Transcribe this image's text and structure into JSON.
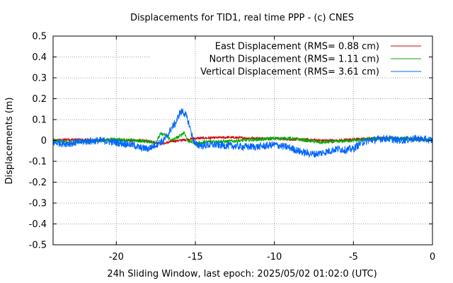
{
  "chart_data": {
    "type": "line",
    "title": "Displacements for TID1, real time PPP - (c) CNES",
    "xlabel": "24h Sliding Window, last epoch: 2025/05/02 01:02:0 (UTC)",
    "ylabel": "Displacements (m)",
    "xlim": [
      -24,
      0
    ],
    "ylim": [
      -0.5,
      0.5
    ],
    "x_ticks": [
      -20,
      -15,
      -10,
      -5,
      0
    ],
    "y_ticks": [
      -0.5,
      -0.4,
      -0.3,
      -0.2,
      -0.1,
      0,
      0.1,
      0.2,
      0.3,
      0.4,
      0.5
    ],
    "y_tick_labels": [
      "-0.5",
      "-0.4",
      "-0.3",
      "-0.2",
      "-0.1",
      "0",
      "0.1",
      "0.2",
      "0.3",
      "0.4",
      "0.5"
    ],
    "x_tick_labels": [
      "-20",
      "-15",
      "-10",
      "-5",
      "0"
    ],
    "grid": true,
    "legend_position": "top-right",
    "series": [
      {
        "name": "East Displacement (RMS= 0.88 cm)",
        "color": "#cc0000",
        "x": [
          -24,
          -23,
          -22,
          -21,
          -20,
          -19,
          -18,
          -17.5,
          -17,
          -16.5,
          -16,
          -15.5,
          -15,
          -14,
          -13,
          -12,
          -11,
          -10,
          -9,
          -8,
          -7,
          -6,
          -5,
          -4,
          -3,
          -2,
          -1,
          0
        ],
        "y": [
          0.0,
          0.005,
          0.002,
          0.0,
          0.002,
          0.0,
          -0.002,
          -0.01,
          -0.015,
          -0.005,
          0.0,
          0.005,
          0.01,
          0.012,
          0.015,
          0.012,
          0.01,
          0.01,
          0.005,
          0.005,
          0.0,
          0.0,
          0.005,
          0.01,
          0.012,
          0.01,
          0.005,
          0.0
        ]
      },
      {
        "name": "North Displacement (RMS= 1.11 cm)",
        "color": "#00aa00",
        "x": [
          -24,
          -23,
          -22,
          -21,
          -20,
          -19,
          -18,
          -17.5,
          -17.2,
          -17,
          -16.5,
          -16,
          -15.7,
          -15.5,
          -15,
          -14.5,
          -14,
          -13,
          -12,
          -11,
          -10,
          -9,
          -8,
          -7,
          -6,
          -5,
          -4,
          -3,
          -2,
          -1,
          0
        ],
        "y": [
          0.0,
          -0.01,
          -0.005,
          0.0,
          0.005,
          0.0,
          -0.005,
          -0.01,
          0.03,
          0.03,
          0.0,
          0.02,
          0.04,
          0.0,
          -0.015,
          -0.01,
          -0.005,
          -0.005,
          0.0,
          0.005,
          0.01,
          0.01,
          0.0,
          -0.01,
          -0.005,
          0.0,
          0.005,
          0.01,
          0.01,
          0.005,
          0.0
        ]
      },
      {
        "name": "Vertical Displacement (RMS= 3.61 cm)",
        "color": "#0066ff",
        "x": [
          -24,
          -23,
          -22,
          -21,
          -20,
          -19,
          -18.5,
          -18,
          -17.5,
          -17,
          -16.8,
          -16.5,
          -16.2,
          -16,
          -15.8,
          -15.6,
          -15.4,
          -15.2,
          -15,
          -14.5,
          -14,
          -13,
          -12,
          -11,
          -10,
          -9,
          -8.5,
          -8,
          -7.5,
          -7,
          -6.5,
          -6,
          -5.5,
          -5,
          -4.5,
          -4,
          -3.5,
          -3,
          -2,
          -1,
          -0.5,
          0
        ],
        "y": [
          -0.01,
          -0.015,
          -0.005,
          0.0,
          -0.01,
          -0.02,
          -0.035,
          -0.04,
          -0.02,
          0.0,
          0.02,
          0.06,
          0.09,
          0.13,
          0.14,
          0.12,
          0.08,
          0.02,
          -0.02,
          -0.025,
          -0.02,
          -0.025,
          -0.03,
          -0.03,
          -0.02,
          -0.035,
          -0.05,
          -0.06,
          -0.065,
          -0.06,
          -0.05,
          -0.04,
          -0.045,
          -0.04,
          -0.01,
          0.0,
          0.005,
          0.01,
          0.0,
          0.01,
          0.005,
          0.0
        ]
      }
    ]
  }
}
